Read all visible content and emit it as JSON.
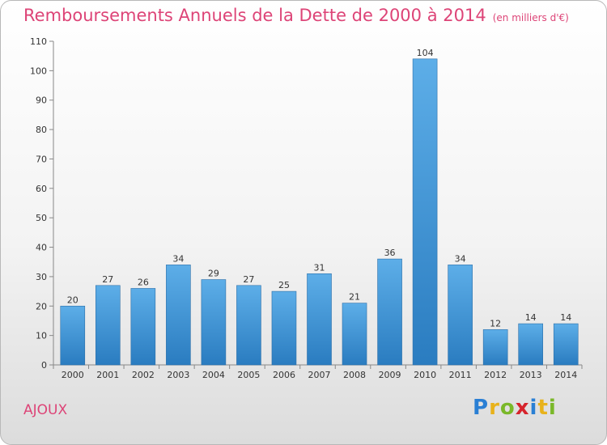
{
  "title": "Remboursements Annuels de la Dette de 2000 à 2014",
  "title_unit": "(en milliers d'€)",
  "town": "AJOUX",
  "logo": {
    "text": "Proxiti",
    "letters": [
      "P",
      "r",
      "o",
      "x",
      "i",
      "t",
      "i"
    ],
    "colors": [
      "#2a7fd4",
      "#e8b21b",
      "#7ab829",
      "#d6242c",
      "#2a7fd4",
      "#e8b21b",
      "#7ab829"
    ]
  },
  "colors": {
    "title": "#dd4477",
    "bar_light": "#5daee8",
    "bar_dark": "#2a7cc0"
  },
  "chart_data": {
    "type": "bar",
    "title": "Remboursements Annuels de la Dette de 2000 à 2014",
    "categories": [
      "2000",
      "2001",
      "2002",
      "2003",
      "2004",
      "2005",
      "2006",
      "2007",
      "2008",
      "2009",
      "2010",
      "2011",
      "2012",
      "2013",
      "2014"
    ],
    "values": [
      20,
      27,
      26,
      34,
      29,
      27,
      25,
      31,
      21,
      36,
      104,
      34,
      12,
      14,
      14
    ],
    "ylim": [
      0,
      110
    ],
    "yticks": [
      0,
      10,
      20,
      30,
      40,
      50,
      60,
      70,
      80,
      90,
      100,
      110
    ],
    "xlabel": "",
    "ylabel": "",
    "grid": false,
    "data_labels": true
  }
}
